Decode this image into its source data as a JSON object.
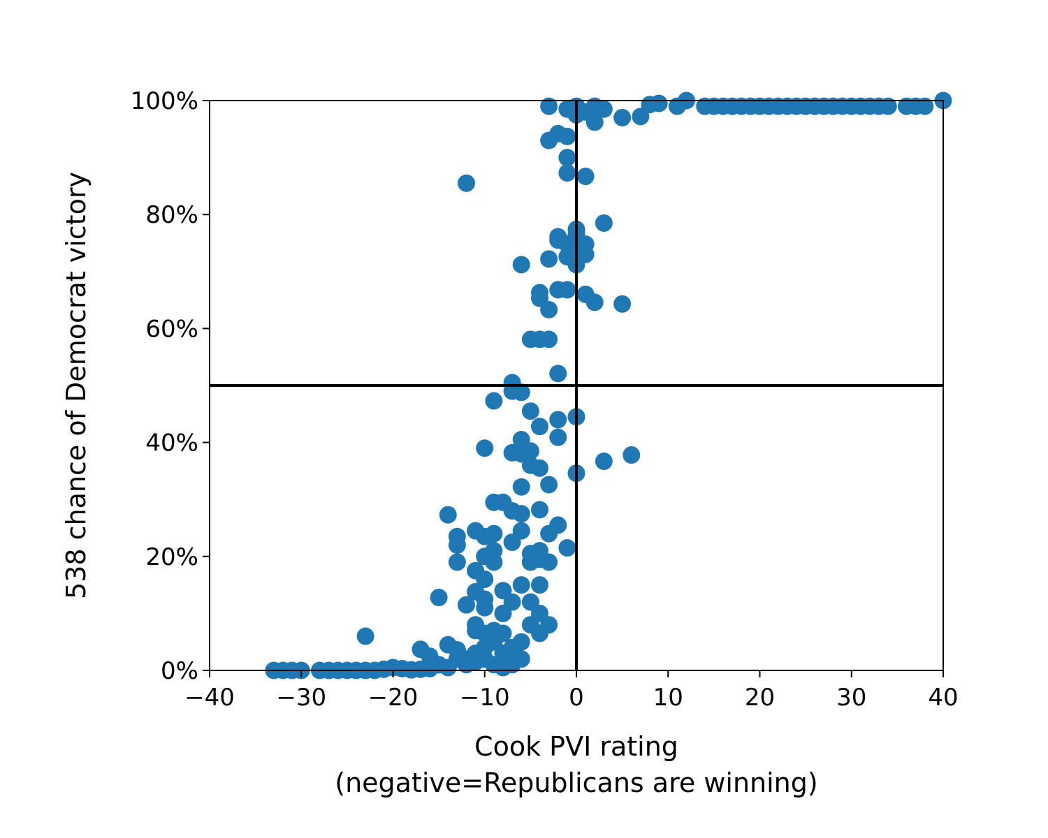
{
  "chart_data": {
    "type": "scatter",
    "title": "",
    "xlabel_lines": [
      "Cook PVI rating",
      "(negative=Republicans are winning)"
    ],
    "ylabel": "538 chance of Democrat victory",
    "xlim": [
      -40,
      40
    ],
    "ylim": [
      0,
      1
    ],
    "x_ticks": [
      -40,
      -30,
      -20,
      -10,
      0,
      10,
      20,
      30,
      40
    ],
    "x_tick_labels": [
      "−40",
      "−30",
      "−20",
      "−10",
      "0",
      "10",
      "20",
      "30",
      "40"
    ],
    "y_ticks": [
      0,
      0.2,
      0.4,
      0.6,
      0.8,
      1.0
    ],
    "y_tick_labels": [
      "0%",
      "20%",
      "40%",
      "60%",
      "80%",
      "100%"
    ],
    "reference_lines": {
      "vertical_x": 0,
      "horizontal_y": 0.5
    },
    "grid": false,
    "legend": "none",
    "colors": {
      "points": "#1f77b4",
      "axes": "#000000"
    },
    "points": [
      [
        -33,
        0.0
      ],
      [
        -32,
        0.0
      ],
      [
        -31,
        0.0
      ],
      [
        -30,
        0.0
      ],
      [
        -28,
        0.0
      ],
      [
        -27,
        0.0
      ],
      [
        -26,
        0.0
      ],
      [
        -25,
        0.0
      ],
      [
        -24,
        0.0
      ],
      [
        -23,
        0.0
      ],
      [
        -22,
        0.0
      ],
      [
        -21,
        0.002
      ],
      [
        -20,
        0.005
      ],
      [
        -19,
        0.003
      ],
      [
        -18,
        0.001
      ],
      [
        -17,
        0.002
      ],
      [
        -16,
        0.003
      ],
      [
        -15,
        0.01
      ],
      [
        -14,
        0.005
      ],
      [
        -13,
        0.02
      ],
      [
        -12,
        0.01
      ],
      [
        -11,
        0.015
      ],
      [
        -10,
        0.02
      ],
      [
        -9,
        0.01
      ],
      [
        -8,
        0.005
      ],
      [
        -7,
        0.01
      ],
      [
        -6,
        0.02
      ],
      [
        -23,
        0.06
      ],
      [
        -17,
        0.037
      ],
      [
        -16,
        0.025
      ],
      [
        -14,
        0.045
      ],
      [
        -13,
        0.036
      ],
      [
        -12,
        0.02
      ],
      [
        -11,
        0.03
      ],
      [
        -10,
        0.04
      ],
      [
        -9,
        0.05
      ],
      [
        -8,
        0.03
      ],
      [
        -7,
        0.04
      ],
      [
        -6,
        0.05
      ],
      [
        -15,
        0.128
      ],
      [
        -12,
        0.115
      ],
      [
        -11,
        0.08
      ],
      [
        -11,
        0.07
      ],
      [
        -10,
        0.065
      ],
      [
        -10,
        0.11
      ],
      [
        -11,
        0.138
      ],
      [
        -10,
        0.125
      ],
      [
        -9,
        0.07
      ],
      [
        -9,
        0.06
      ],
      [
        -8,
        0.065
      ],
      [
        -8,
        0.14
      ],
      [
        -8,
        0.1
      ],
      [
        -7,
        0.12
      ],
      [
        -6,
        0.15
      ],
      [
        -5,
        0.12
      ],
      [
        -5,
        0.08
      ],
      [
        -4,
        0.1
      ],
      [
        -4,
        0.065
      ],
      [
        -4,
        0.15
      ],
      [
        -3,
        0.08
      ],
      [
        -11,
        0.175
      ],
      [
        -10,
        0.2
      ],
      [
        -10,
        0.16
      ],
      [
        -9,
        0.19
      ],
      [
        -9,
        0.21
      ],
      [
        -13,
        0.19
      ],
      [
        -13,
        0.22
      ],
      [
        -13,
        0.235
      ],
      [
        -14,
        0.273
      ],
      [
        -11,
        0.245
      ],
      [
        -10,
        0.235
      ],
      [
        -9,
        0.24
      ],
      [
        -9,
        0.295
      ],
      [
        -8,
        0.295
      ],
      [
        -7,
        0.28
      ],
      [
        -7,
        0.225
      ],
      [
        -6,
        0.245
      ],
      [
        -6,
        0.275
      ],
      [
        -5,
        0.19
      ],
      [
        -5,
        0.205
      ],
      [
        -4,
        0.21
      ],
      [
        -4,
        0.195
      ],
      [
        -3,
        0.19
      ],
      [
        -3,
        0.24
      ],
      [
        -2,
        0.255
      ],
      [
        -1,
        0.215
      ],
      [
        -4,
        0.282
      ],
      [
        -3,
        0.326
      ],
      [
        -6,
        0.322
      ],
      [
        -7,
        0.382
      ],
      [
        -6,
        0.38
      ],
      [
        -5,
        0.385
      ],
      [
        -6,
        0.405
      ],
      [
        -5,
        0.36
      ],
      [
        -4,
        0.355
      ],
      [
        -4,
        0.428
      ],
      [
        -10,
        0.39
      ],
      [
        -5,
        0.455
      ],
      [
        -9,
        0.473
      ],
      [
        -7,
        0.505
      ],
      [
        -7,
        0.49
      ],
      [
        -6,
        0.488
      ],
      [
        -2,
        0.44
      ],
      [
        -2,
        0.409
      ],
      [
        0,
        0.445
      ],
      [
        0,
        0.346
      ],
      [
        3,
        0.367
      ],
      [
        6,
        0.378
      ],
      [
        -2,
        0.521
      ],
      [
        -5,
        0.581
      ],
      [
        -4,
        0.581
      ],
      [
        -3,
        0.581
      ],
      [
        -4,
        0.663
      ],
      [
        -4,
        0.653
      ],
      [
        -3,
        0.633
      ],
      [
        -2,
        0.668
      ],
      [
        -1,
        0.668
      ],
      [
        1,
        0.66
      ],
      [
        2,
        0.646
      ],
      [
        5,
        0.643
      ],
      [
        -6,
        0.712
      ],
      [
        -3,
        0.722
      ],
      [
        -2,
        0.755
      ],
      [
        -2,
        0.761
      ],
      [
        -1,
        0.748
      ],
      [
        -1,
        0.726
      ],
      [
        0,
        0.774
      ],
      [
        0,
        0.765
      ],
      [
        0,
        0.74
      ],
      [
        0,
        0.712
      ],
      [
        1,
        0.748
      ],
      [
        1,
        0.73
      ],
      [
        3,
        0.785
      ],
      [
        -12,
        0.855
      ],
      [
        -1,
        0.873
      ],
      [
        1,
        0.867
      ],
      [
        -1,
        0.9
      ],
      [
        -3,
        0.93
      ],
      [
        -2,
        0.942
      ],
      [
        -1,
        0.937
      ],
      [
        -3,
        0.99
      ],
      [
        -1,
        0.985
      ],
      [
        0,
        0.975
      ],
      [
        0,
        0.99
      ],
      [
        1,
        0.98
      ],
      [
        2,
        0.962
      ],
      [
        2,
        0.99
      ],
      [
        3,
        0.985
      ],
      [
        5,
        0.97
      ],
      [
        7,
        0.972
      ],
      [
        8,
        0.993
      ],
      [
        9,
        0.995
      ],
      [
        11,
        0.99
      ],
      [
        12,
        1.0
      ],
      [
        14,
        0.99
      ],
      [
        15,
        0.99
      ],
      [
        16,
        0.99
      ],
      [
        17,
        0.99
      ],
      [
        18,
        0.99
      ],
      [
        19,
        0.99
      ],
      [
        20,
        0.99
      ],
      [
        21,
        0.99
      ],
      [
        22,
        0.99
      ],
      [
        23,
        0.99
      ],
      [
        24,
        0.99
      ],
      [
        25,
        0.99
      ],
      [
        26,
        0.99
      ],
      [
        27,
        0.99
      ],
      [
        28,
        0.99
      ],
      [
        29,
        0.99
      ],
      [
        30,
        0.99
      ],
      [
        31,
        0.99
      ],
      [
        32,
        0.99
      ],
      [
        33,
        0.99
      ],
      [
        34,
        0.99
      ],
      [
        36,
        0.99
      ],
      [
        37,
        0.99
      ],
      [
        38,
        0.99
      ],
      [
        40,
        1.0
      ]
    ]
  }
}
